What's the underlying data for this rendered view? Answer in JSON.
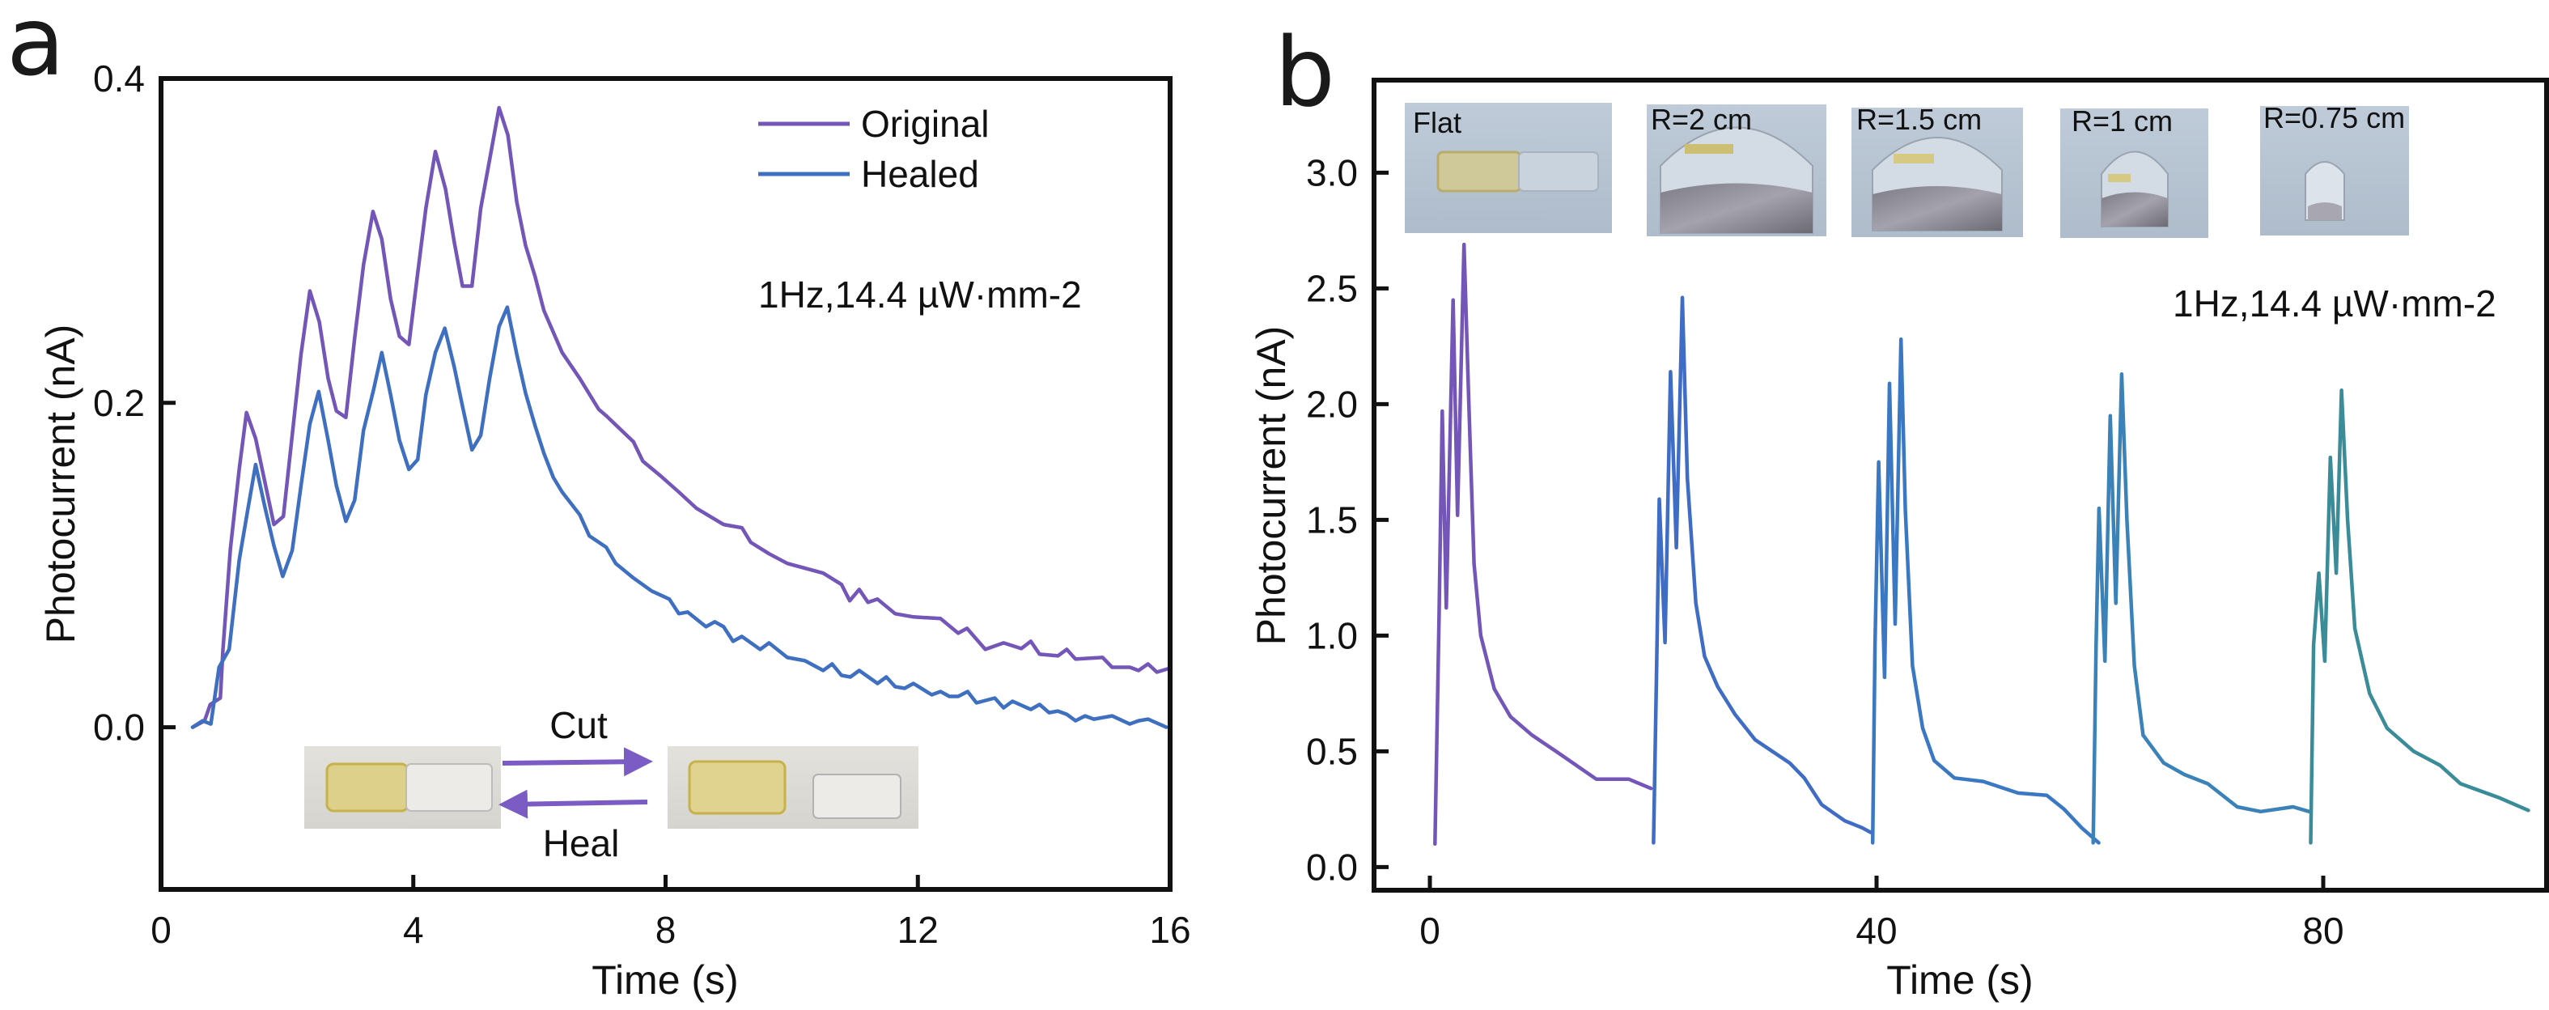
{
  "chart_data": [
    {
      "panel_label": "a",
      "type": "line",
      "title": "",
      "xlabel": "Time (s)",
      "ylabel": "Photocurrent (nA)",
      "xlim": [
        0,
        16
      ],
      "ylim": [
        -0.1,
        0.4
      ],
      "xticks": [
        0,
        4,
        8,
        12,
        16
      ],
      "xtick_labels": [
        "0",
        "4",
        "8",
        "12",
        "16"
      ],
      "yticks": [
        0.0,
        0.2,
        0.4
      ],
      "ytick_labels": [
        "0.0",
        "0.2",
        "0.4"
      ],
      "grid": false,
      "legend_position": "top-right",
      "annotation": "1Hz,14.4 µW·mm-2",
      "inset": {
        "description": "photos of film before and after cut/heal",
        "arrow_top_label": "Cut",
        "arrow_bottom_label": "Heal",
        "arrow_color": "#7b5cc4"
      },
      "series": [
        {
          "name": "Original",
          "color": "#7356b8",
          "x": [
            0.5,
            0.69,
            0.78,
            0.94,
            0.98,
            1.1,
            1.24,
            1.355,
            1.5,
            1.79,
            1.94,
            2.08,
            2.22,
            2.36,
            2.51,
            2.65,
            2.78,
            2.93,
            3.07,
            3.21,
            3.36,
            3.5,
            3.64,
            3.78,
            3.93,
            4.07,
            4.2,
            4.35,
            4.51,
            4.65,
            4.78,
            4.93,
            5.07,
            5.21,
            5.36,
            5.5,
            5.64,
            5.78,
            5.93,
            6.07,
            6.36,
            6.64,
            6.94,
            7.06,
            7.49,
            7.64,
            7.92,
            8.21,
            8.49,
            8.92,
            9.21,
            9.35,
            9.64,
            9.93,
            10.5,
            10.79,
            10.92,
            11.07,
            11.21,
            11.36,
            11.64,
            11.93,
            12.36,
            12.64,
            12.78,
            13.07,
            13.36,
            13.64,
            13.79,
            13.93,
            14.22,
            14.36,
            14.5,
            14.93,
            15.08,
            15.36,
            15.5,
            15.65,
            15.79,
            15.96
          ],
          "y": [
            0.0,
            0.004,
            0.014,
            0.018,
            0.047,
            0.11,
            0.159,
            0.194,
            0.178,
            0.125,
            0.13,
            0.18,
            0.23,
            0.269,
            0.25,
            0.215,
            0.195,
            0.191,
            0.24,
            0.285,
            0.318,
            0.301,
            0.264,
            0.241,
            0.236,
            0.28,
            0.32,
            0.355,
            0.332,
            0.299,
            0.272,
            0.272,
            0.32,
            0.35,
            0.382,
            0.365,
            0.324,
            0.297,
            0.278,
            0.257,
            0.231,
            0.215,
            0.196,
            0.192,
            0.176,
            0.164,
            0.155,
            0.145,
            0.135,
            0.125,
            0.123,
            0.114,
            0.107,
            0.101,
            0.095,
            0.088,
            0.078,
            0.085,
            0.077,
            0.079,
            0.07,
            0.068,
            0.067,
            0.058,
            0.061,
            0.048,
            0.052,
            0.0485,
            0.053,
            0.045,
            0.044,
            0.048,
            0.042,
            0.043,
            0.037,
            0.037,
            0.035,
            0.039,
            0.034,
            0.036
          ]
        },
        {
          "name": "Healed",
          "color": "#3f6fc0",
          "x": [
            0.5,
            0.66,
            0.79,
            0.92,
            1.08,
            1.24,
            1.37,
            1.5,
            1.64,
            1.79,
            1.93,
            2.08,
            2.22,
            2.36,
            2.5,
            2.65,
            2.78,
            2.93,
            3.07,
            3.21,
            3.37,
            3.5,
            3.64,
            3.78,
            3.93,
            4.07,
            4.2,
            4.35,
            4.5,
            4.65,
            4.78,
            4.93,
            5.07,
            5.21,
            5.36,
            5.49,
            5.64,
            5.78,
            5.93,
            6.07,
            6.22,
            6.36,
            6.64,
            6.79,
            7.06,
            7.21,
            7.49,
            7.78,
            8.06,
            8.21,
            8.35,
            8.64,
            8.78,
            8.92,
            9.07,
            9.21,
            9.5,
            9.64,
            9.93,
            10.21,
            10.5,
            10.64,
            10.79,
            10.93,
            11.07,
            11.36,
            11.5,
            11.64,
            11.79,
            11.93,
            12.22,
            12.36,
            12.5,
            12.64,
            12.79,
            12.93,
            13.22,
            13.36,
            13.5,
            13.79,
            13.93,
            14.08,
            14.22,
            14.36,
            14.5,
            14.65,
            14.79,
            15.08,
            15.36,
            15.5,
            15.65,
            15.94
          ],
          "y": [
            0.0,
            0.004,
            0.002,
            0.037,
            0.048,
            0.103,
            0.133,
            0.162,
            0.137,
            0.112,
            0.093,
            0.109,
            0.149,
            0.187,
            0.207,
            0.177,
            0.149,
            0.127,
            0.14,
            0.183,
            0.208,
            0.231,
            0.205,
            0.177,
            0.159,
            0.165,
            0.205,
            0.231,
            0.246,
            0.222,
            0.198,
            0.171,
            0.18,
            0.215,
            0.247,
            0.259,
            0.23,
            0.206,
            0.186,
            0.169,
            0.154,
            0.145,
            0.131,
            0.118,
            0.111,
            0.101,
            0.092,
            0.084,
            0.079,
            0.07,
            0.071,
            0.062,
            0.065,
            0.062,
            0.053,
            0.056,
            0.048,
            0.052,
            0.043,
            0.041,
            0.035,
            0.039,
            0.032,
            0.031,
            0.035,
            0.027,
            0.031,
            0.025,
            0.024,
            0.027,
            0.02,
            0.022,
            0.019,
            0.019,
            0.022,
            0.015,
            0.018,
            0.012,
            0.016,
            0.011,
            0.014,
            0.009,
            0.01,
            0.008,
            0.004,
            0.007,
            0.005,
            0.007,
            0.002,
            0.004,
            0.005,
            0.0
          ]
        }
      ]
    },
    {
      "panel_label": "b",
      "type": "line",
      "title": "",
      "xlabel": "Time (s)",
      "ylabel": "Photocurrent (nA)",
      "xlim": [
        -5,
        100
      ],
      "ylim": [
        -0.1,
        3.4
      ],
      "xticks": [
        0,
        40,
        80
      ],
      "xtick_labels": [
        "0",
        "40",
        "80"
      ],
      "yticks": [
        0.0,
        0.5,
        1.0,
        1.5,
        2.0,
        2.5,
        3.0
      ],
      "ytick_labels": [
        "0.0",
        "0.5",
        "1.0",
        "1.5",
        "2.0",
        "2.5",
        "3.0"
      ],
      "grid": false,
      "annotation": "1Hz,14.4 µW·mm-2",
      "inset_photo_labels": [
        "Flat",
        "R=2 cm",
        "R=1.5 cm",
        "R=1 cm",
        "R=0.75 cm"
      ],
      "series": [
        {
          "name": "Flat",
          "color": "#7356b8",
          "x": [
            0.46,
            0.82,
            1.11,
            1.47,
            2.08,
            2.48,
            3.06,
            3.48,
            3.96,
            4.56,
            5.77,
            7.22,
            9.15,
            11.3,
            14.9,
            17.8,
            19.8
          ],
          "y": [
            0.1,
            1.07,
            1.97,
            1.12,
            2.45,
            1.52,
            2.69,
            2.02,
            1.31,
            1.0,
            0.77,
            0.65,
            0.57,
            0.5,
            0.38,
            0.38,
            0.34
          ]
        },
        {
          "name": "R=2 cm",
          "color": "#3f6cc4",
          "x": [
            20.03,
            20.34,
            20.54,
            21.06,
            21.55,
            22.07,
            22.61,
            23.06,
            23.82,
            24.6,
            25.77,
            27.32,
            29.13,
            32.22,
            33.53,
            35.08,
            37.15,
            38.7,
            39.47
          ],
          "y": [
            0.105,
            0.96,
            1.59,
            0.97,
            2.14,
            1.38,
            2.46,
            1.68,
            1.14,
            0.91,
            0.78,
            0.66,
            0.55,
            0.45,
            0.385,
            0.27,
            0.2,
            0.17,
            0.15
          ]
        },
        {
          "name": "R=1.5 cm",
          "color": "#3b78c4",
          "x": [
            39.65,
            39.86,
            40.19,
            40.72,
            41.16,
            41.67,
            42.19,
            42.58,
            43.22,
            44.13,
            45.16,
            46.97,
            49.56,
            52.67,
            55.25,
            56.8,
            58.36,
            59.9
          ],
          "y": [
            0.105,
            0.96,
            1.75,
            0.82,
            2.09,
            1.05,
            2.28,
            1.54,
            0.87,
            0.6,
            0.46,
            0.385,
            0.37,
            0.32,
            0.31,
            0.25,
            0.17,
            0.105
          ]
        },
        {
          "name": "R=1 cm",
          "color": "#3b82b8",
          "x": [
            59.4,
            59.66,
            59.92,
            60.45,
            60.93,
            61.43,
            61.95,
            62.42,
            63.09,
            63.87,
            65.71,
            67.56,
            69.66,
            72.3,
            74.4,
            77.3,
            78.74
          ],
          "y": [
            0.105,
            0.96,
            1.55,
            0.89,
            1.95,
            1.14,
            2.13,
            1.5,
            0.87,
            0.57,
            0.45,
            0.4,
            0.36,
            0.26,
            0.24,
            0.26,
            0.24
          ]
        },
        {
          "name": "R=0.75 cm",
          "color": "#3a8c98",
          "x": [
            78.88,
            79.14,
            79.61,
            80.14,
            80.64,
            81.17,
            81.64,
            82.18,
            82.83,
            84.15,
            85.72,
            88.1,
            90.46,
            92.3,
            95.73,
            98.36
          ],
          "y": [
            0.105,
            0.96,
            1.27,
            0.89,
            1.77,
            1.27,
            2.06,
            1.5,
            1.03,
            0.75,
            0.6,
            0.5,
            0.44,
            0.36,
            0.3,
            0.245
          ]
        }
      ]
    }
  ]
}
